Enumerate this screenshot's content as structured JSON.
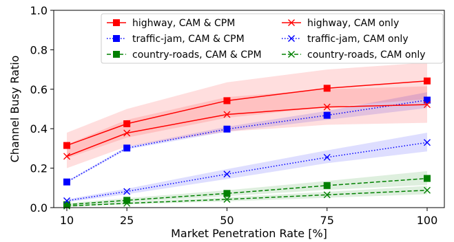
{
  "chart_data": {
    "type": "line",
    "xlabel": "Market Penetration Rate [%]",
    "ylabel": "Channel Busy Ratio",
    "x": [
      10,
      25,
      50,
      75,
      100
    ],
    "x_tick_labels": [
      "10",
      "25",
      "50",
      "75",
      "100"
    ],
    "ylim": [
      0.0,
      1.0
    ],
    "y_ticks": [
      0.0,
      0.2,
      0.4,
      0.6,
      0.8,
      1.0
    ],
    "y_tick_labels": [
      "0.0",
      "0.2",
      "0.4",
      "0.6",
      "0.8",
      "1.0"
    ],
    "grid": false,
    "legend": {
      "placement": "top-center",
      "columns": 2
    },
    "series": [
      {
        "name": "highway, CAM & CPM",
        "color": "#ff0000",
        "line_style": "solid",
        "marker": "square",
        "values": [
          0.315,
          0.425,
          0.542,
          0.605,
          0.642
        ],
        "band_low": [
          0.25,
          0.355,
          0.455,
          0.51,
          0.55
        ],
        "band_high": [
          0.38,
          0.5,
          0.635,
          0.7,
          0.735
        ]
      },
      {
        "name": "traffic-jam, CAM & CPM",
        "color": "#0000ff",
        "line_style": "dotted",
        "marker": "square",
        "values": [
          0.13,
          0.302,
          0.398,
          0.468,
          0.545
        ],
        "band_low": [
          0.125,
          0.295,
          0.385,
          0.445,
          0.505
        ],
        "band_high": [
          0.135,
          0.31,
          0.41,
          0.49,
          0.585
        ]
      },
      {
        "name": "country-roads, CAM & CPM",
        "color": "#008000",
        "line_style": "dashed",
        "marker": "square",
        "values": [
          0.015,
          0.037,
          0.072,
          0.112,
          0.148
        ],
        "band_low": [
          0.01,
          0.028,
          0.058,
          0.09,
          0.115
        ],
        "band_high": [
          0.022,
          0.048,
          0.088,
          0.135,
          0.185
        ]
      },
      {
        "name": "highway, CAM only",
        "color": "#ff0000",
        "line_style": "solid",
        "marker": "x",
        "values": [
          0.26,
          0.378,
          0.472,
          0.51,
          0.522
        ],
        "band_low": [
          0.2,
          0.31,
          0.385,
          0.42,
          0.43
        ],
        "band_high": [
          0.32,
          0.445,
          0.56,
          0.6,
          0.615
        ]
      },
      {
        "name": "traffic-jam, CAM only",
        "color": "#0000ff",
        "line_style": "dotted",
        "marker": "x",
        "values": [
          0.035,
          0.082,
          0.17,
          0.255,
          0.33
        ],
        "band_low": [
          0.028,
          0.068,
          0.145,
          0.225,
          0.285
        ],
        "band_high": [
          0.042,
          0.096,
          0.195,
          0.29,
          0.38
        ]
      },
      {
        "name": "country-roads, CAM only",
        "color": "#008000",
        "line_style": "dashed",
        "marker": "x",
        "values": [
          0.008,
          0.022,
          0.042,
          0.065,
          0.088
        ],
        "band_low": [
          0.005,
          0.016,
          0.032,
          0.05,
          0.068
        ],
        "band_high": [
          0.012,
          0.028,
          0.052,
          0.08,
          0.11
        ]
      }
    ]
  }
}
